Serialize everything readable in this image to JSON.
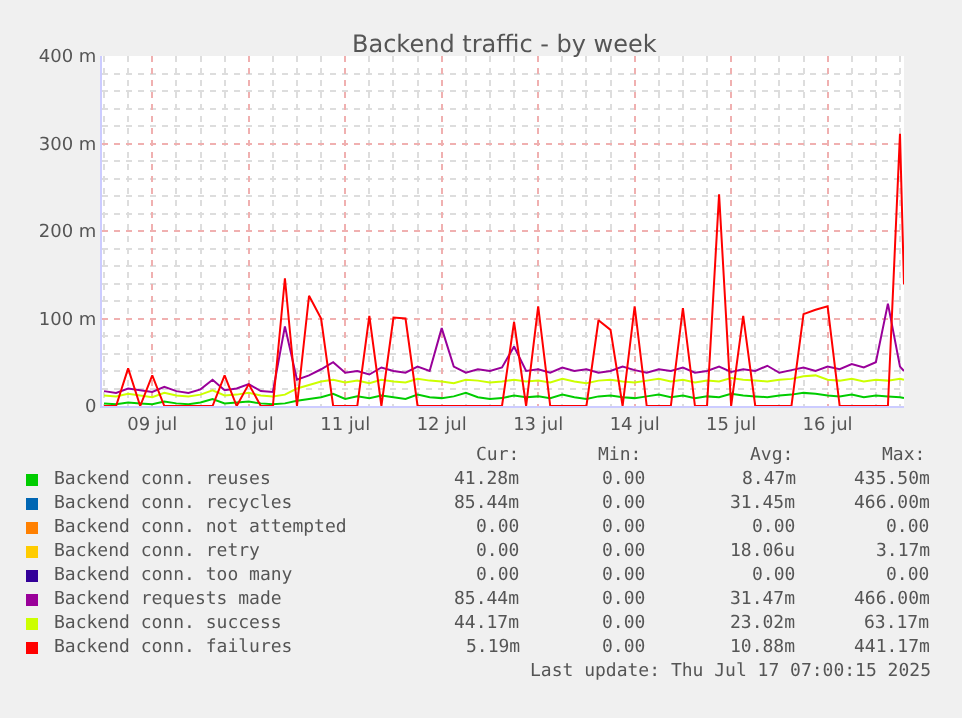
{
  "chart_data": {
    "type": "line",
    "title": "Backend traffic - by week",
    "x": [
      "2025-07-09T00:00",
      "2025-07-09T03:00",
      "2025-07-09T06:00",
      "2025-07-09T09:00",
      "2025-07-09T12:00",
      "2025-07-09T15:00",
      "2025-07-09T18:00",
      "2025-07-09T21:00",
      "2025-07-10T00:00",
      "2025-07-10T03:00",
      "2025-07-10T06:00",
      "2025-07-10T09:00",
      "2025-07-10T12:00",
      "2025-07-10T15:00",
      "2025-07-10T18:00",
      "2025-07-10T21:00",
      "2025-07-11T00:00",
      "2025-07-11T03:00",
      "2025-07-11T06:00",
      "2025-07-11T09:00",
      "2025-07-11T12:00",
      "2025-07-11T15:00",
      "2025-07-11T18:00",
      "2025-07-11T21:00",
      "2025-07-12T00:00",
      "2025-07-12T03:00",
      "2025-07-12T06:00",
      "2025-07-12T09:00",
      "2025-07-12T12:00",
      "2025-07-12T15:00",
      "2025-07-12T18:00",
      "2025-07-12T21:00",
      "2025-07-13T00:00",
      "2025-07-13T03:00",
      "2025-07-13T06:00",
      "2025-07-13T09:00",
      "2025-07-13T12:00",
      "2025-07-13T15:00",
      "2025-07-13T18:00",
      "2025-07-13T21:00",
      "2025-07-14T00:00",
      "2025-07-14T03:00",
      "2025-07-14T06:00",
      "2025-07-14T09:00",
      "2025-07-14T12:00",
      "2025-07-14T15:00",
      "2025-07-14T18:00",
      "2025-07-14T21:00",
      "2025-07-15T00:00",
      "2025-07-15T03:00",
      "2025-07-15T06:00",
      "2025-07-15T09:00",
      "2025-07-15T12:00",
      "2025-07-15T15:00",
      "2025-07-15T18:00",
      "2025-07-15T21:00",
      "2025-07-16T00:00",
      "2025-07-16T03:00",
      "2025-07-16T06:00",
      "2025-07-16T09:00",
      "2025-07-16T12:00",
      "2025-07-16T15:00",
      "2025-07-16T18:00",
      "2025-07-16T21:00",
      "2025-07-17T00:00",
      "2025-07-17T03:00",
      "2025-07-17T06:00",
      "2025-07-17T07:00"
    ],
    "series": [
      {
        "name": "Backend conn. reuses",
        "color": "#00cc00",
        "values": [
          3,
          2,
          4,
          3,
          2,
          5,
          3,
          2,
          4,
          8,
          3,
          4,
          5,
          3,
          2,
          3,
          6,
          8,
          10,
          14,
          8,
          11,
          9,
          12,
          10,
          8,
          13,
          10,
          9,
          11,
          15,
          10,
          8,
          9,
          12,
          10,
          11,
          9,
          13,
          10,
          8,
          11,
          12,
          10,
          9,
          11,
          13,
          10,
          12,
          9,
          11,
          10,
          14,
          12,
          11,
          10,
          12,
          13,
          15,
          14,
          12,
          11,
          13,
          10,
          12,
          11,
          10,
          9
        ]
      },
      {
        "name": "Backend conn. recycles",
        "color": "#0066b3",
        "values": [
          null,
          null,
          null,
          null,
          null,
          null,
          null,
          null,
          null,
          null,
          null,
          null,
          null,
          null,
          null,
          null,
          null,
          null,
          null,
          null,
          null,
          null,
          null,
          null,
          null,
          null,
          null,
          null,
          null,
          null,
          null,
          null,
          null,
          null,
          null,
          null,
          null,
          null,
          null,
          null,
          null,
          null,
          null,
          null,
          null,
          null,
          null,
          null,
          null,
          null,
          null,
          null,
          null,
          null,
          null,
          null,
          null,
          null,
          null,
          null,
          null,
          null,
          null,
          null,
          null,
          null,
          null,
          null
        ]
      },
      {
        "name": "Backend conn. not attempted",
        "color": "#ff8000",
        "values": [
          null,
          null,
          null,
          null,
          null,
          null,
          null,
          null,
          null,
          null,
          null,
          null,
          null,
          null,
          null,
          null,
          null,
          null,
          null,
          null,
          null,
          null,
          null,
          null,
          null,
          null,
          null,
          null,
          null,
          null,
          null,
          null,
          null,
          null,
          null,
          null,
          null,
          null,
          null,
          null,
          null,
          null,
          null,
          null,
          null,
          null,
          null,
          null,
          null,
          null,
          null,
          null,
          null,
          null,
          null,
          null,
          null,
          null,
          null,
          null,
          null,
          null,
          null,
          null,
          null,
          null,
          null,
          null
        ]
      },
      {
        "name": "Backend conn. retry",
        "color": "#ffcc00",
        "values": [
          null,
          null,
          null,
          null,
          null,
          null,
          null,
          null,
          null,
          null,
          null,
          null,
          null,
          null,
          null,
          null,
          null,
          null,
          null,
          null,
          null,
          null,
          null,
          null,
          null,
          null,
          null,
          null,
          null,
          null,
          null,
          null,
          null,
          null,
          null,
          null,
          null,
          null,
          null,
          null,
          null,
          null,
          null,
          null,
          null,
          null,
          null,
          null,
          null,
          null,
          null,
          null,
          null,
          null,
          null,
          null,
          null,
          null,
          null,
          null,
          null,
          null,
          null,
          null,
          null,
          null,
          null,
          null
        ]
      },
      {
        "name": "Backend conn. too many",
        "color": "#330099",
        "values": [
          null,
          null,
          null,
          null,
          null,
          null,
          null,
          null,
          null,
          null,
          null,
          null,
          null,
          null,
          null,
          null,
          null,
          null,
          null,
          null,
          null,
          null,
          null,
          null,
          null,
          null,
          null,
          null,
          null,
          null,
          null,
          null,
          null,
          null,
          null,
          null,
          null,
          null,
          null,
          null,
          null,
          null,
          null,
          null,
          null,
          null,
          null,
          null,
          null,
          null,
          null,
          null,
          null,
          null,
          null,
          null,
          null,
          null,
          null,
          null,
          null,
          null,
          null,
          null,
          null,
          null,
          null,
          null
        ]
      },
      {
        "name": "Backend requests made",
        "color": "#990099",
        "values": [
          17,
          15,
          20,
          18,
          16,
          22,
          17,
          15,
          19,
          30,
          18,
          20,
          25,
          17,
          16,
          91,
          30,
          35,
          42,
          50,
          38,
          40,
          36,
          44,
          40,
          38,
          45,
          40,
          89,
          45,
          38,
          42,
          40,
          44,
          68,
          40,
          42,
          38,
          44,
          40,
          42,
          38,
          40,
          45,
          41,
          38,
          42,
          40,
          44,
          38,
          40,
          45,
          39,
          42,
          40,
          46,
          38,
          41,
          44,
          40,
          45,
          42,
          48,
          44,
          50,
          117,
          45,
          40
        ]
      },
      {
        "name": "Backend conn. success",
        "color": "#ccff00",
        "values": [
          12,
          11,
          14,
          12,
          10,
          15,
          12,
          11,
          13,
          18,
          12,
          13,
          15,
          12,
          11,
          13,
          20,
          24,
          28,
          30,
          27,
          29,
          26,
          30,
          28,
          27,
          31,
          29,
          28,
          26,
          30,
          29,
          27,
          28,
          30,
          28,
          29,
          27,
          31,
          28,
          26,
          29,
          30,
          28,
          27,
          29,
          31,
          28,
          30,
          27,
          29,
          28,
          32,
          30,
          29,
          28,
          30,
          31,
          34,
          35,
          30,
          29,
          31,
          28,
          30,
          29,
          31,
          30
        ]
      },
      {
        "name": "Backend conn. failures",
        "color": "#ff0000",
        "values": [
          0,
          0,
          43,
          0,
          35,
          0,
          0,
          0,
          0,
          0,
          35,
          0,
          25,
          0,
          0,
          146,
          0,
          126,
          100,
          0,
          0,
          0,
          103,
          0,
          101,
          100,
          0,
          0,
          0,
          0,
          0,
          0,
          0,
          0,
          96,
          0,
          114,
          0,
          0,
          0,
          0,
          98,
          87,
          0,
          114,
          0,
          0,
          0,
          112,
          0,
          0,
          242,
          0,
          103,
          0,
          0,
          0,
          0,
          105,
          110,
          114,
          0,
          0,
          0,
          0,
          0,
          311,
          139
        ]
      }
    ],
    "xlim": [
      "2025-07-08T23:30",
      "2025-07-17T07:00"
    ],
    "xticks": [
      {
        "value": "2025-07-09T12:00",
        "label": "09 jul"
      },
      {
        "value": "2025-07-10T12:00",
        "label": "10 jul"
      },
      {
        "value": "2025-07-11T12:00",
        "label": "11 jul"
      },
      {
        "value": "2025-07-12T12:00",
        "label": "12 jul"
      },
      {
        "value": "2025-07-13T12:00",
        "label": "13 jul"
      },
      {
        "value": "2025-07-14T12:00",
        "label": "14 jul"
      },
      {
        "value": "2025-07-15T12:00",
        "label": "15 jul"
      },
      {
        "value": "2025-07-16T12:00",
        "label": "16 jul"
      }
    ],
    "ylim": [
      0,
      400
    ],
    "yticks": [
      {
        "value": 0,
        "label": "0"
      },
      {
        "value": 100,
        "label": "100 m"
      },
      {
        "value": 200,
        "label": "200 m"
      },
      {
        "value": 300,
        "label": "300 m"
      },
      {
        "value": 400,
        "label": "400 m"
      }
    ],
    "grid": true,
    "legend": "bottom",
    "marker": "none",
    "line_style": "solid",
    "annotations": [
      "Cur:",
      "Min:",
      "Avg:",
      "Max:",
      "41.28m",
      "0.00",
      "8.47m",
      "435.50m",
      "85.44m",
      "0.00",
      "31.45m",
      "466.00m",
      "0.00",
      "0.00",
      "0.00",
      "0.00",
      "0.00",
      "0.00",
      "18.06u",
      "3.17m",
      "0.00",
      "0.00",
      "0.00",
      "0.00",
      "85.44m",
      "0.00",
      "31.47m",
      "466.00m",
      "44.17m",
      "0.00",
      "23.02m",
      "63.17m",
      "5.19m",
      "0.00",
      "10.88m",
      "441.17m",
      "Last update: Thu Jul 17 07:00:15 2025"
    ]
  }
}
